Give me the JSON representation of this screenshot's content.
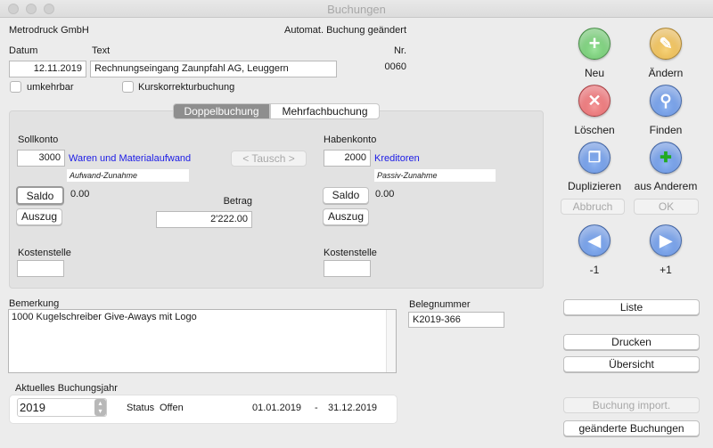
{
  "window": {
    "title": "Buchungen"
  },
  "header": {
    "company": "Metrodruck GmbH",
    "status": "Automat. Buchung geändert"
  },
  "fields": {
    "datum_label": "Datum",
    "datum": "12.11.2019",
    "text_label": "Text",
    "text": "Rechnungseingang Zaunpfahl AG, Leuggern",
    "nr_label": "Nr.",
    "nr": "0060"
  },
  "checkboxes": {
    "umkehrbar": "umkehrbar",
    "kurskorrektur": "Kurskorrekturbuchung"
  },
  "tabs": [
    {
      "label": "Doppelbuchung",
      "selected": true
    },
    {
      "label": "Mehrfachbuchung",
      "selected": false
    }
  ],
  "soll": {
    "label": "Sollkonto",
    "konto": "3000",
    "name": "Waren und Materialaufwand",
    "note": "Aufwand-Zunahme",
    "saldo_btn": "Saldo",
    "saldo": "0.00",
    "auszug_btn": "Auszug",
    "kst_label": "Kostenstelle",
    "kst": ""
  },
  "haben": {
    "label": "Habenkonto",
    "konto": "2000",
    "name": "Kreditoren",
    "note": "Passiv-Zunahme",
    "saldo_btn": "Saldo",
    "saldo": "0.00",
    "auszug_btn": "Auszug",
    "kst_label": "Kostenstelle",
    "kst": ""
  },
  "tausch": "< Tausch >",
  "betrag": {
    "label": "Betrag",
    "value": "2'222.00"
  },
  "bemerkung": {
    "label": "Bemerkung",
    "value": "1000 Kugelschreiber Give-Aways mit Logo"
  },
  "beleg": {
    "label": "Belegnummer",
    "value": "K2019-366"
  },
  "jahr": {
    "label": "Aktuelles Buchungsjahr",
    "value": "2019",
    "status_label": "Status",
    "status": "Offen",
    "from": "01.01.2019",
    "sep": "-",
    "to": "31.12.2019"
  },
  "actions": {
    "neu": "Neu",
    "aendern": "Ändern",
    "loeschen": "Löschen",
    "finden": "Finden",
    "duplizieren": "Duplizieren",
    "aus_anderem": "aus Anderem",
    "abbruch": "Abbruch",
    "ok": "OK",
    "prev": "-1",
    "next": "+1"
  },
  "buttons": {
    "liste": "Liste",
    "drucken": "Drucken",
    "uebersicht": "Übersicht",
    "import": "Buchung import.",
    "geaendert": "geänderte Buchungen"
  },
  "colors": {
    "link": "#1a1ae6",
    "selected_tab": "#8e8e8e"
  }
}
